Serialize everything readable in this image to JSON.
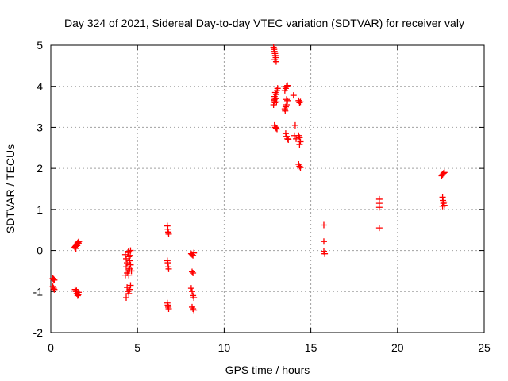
{
  "colors": {
    "series": "#ff0000",
    "grid": "#a0a0a0",
    "axis": "#000000",
    "background": "#ffffff"
  },
  "chart_data": {
    "type": "scatter",
    "title": "Day 324 of 2021, Sidereal Day-to-day VTEC variation (SDTVAR) for receiver valy",
    "xlabel": "GPS time / hours",
    "ylabel": "SDTVAR / TECUs",
    "xlim": [
      0,
      25
    ],
    "ylim": [
      -2,
      5
    ],
    "xticks": [
      0,
      5,
      10,
      15,
      20,
      25
    ],
    "yticks": [
      -2,
      -1,
      0,
      1,
      2,
      3,
      4,
      5
    ],
    "xtick_labels": [
      "0",
      "5",
      "10",
      "15",
      "20",
      "25"
    ],
    "ytick_labels": [
      "-2",
      "-1",
      "0",
      "1",
      "2",
      "3",
      "4",
      "5"
    ],
    "grid": true,
    "marker": "plus",
    "series": [
      {
        "name": "SDTVAR",
        "points": [
          [
            0.12,
            -0.68
          ],
          [
            0.16,
            -0.7
          ],
          [
            0.2,
            -0.72
          ],
          [
            0.12,
            -0.88
          ],
          [
            0.16,
            -0.92
          ],
          [
            0.2,
            -0.95
          ],
          [
            1.38,
            0.08
          ],
          [
            1.42,
            0.1
          ],
          [
            1.46,
            0.12
          ],
          [
            1.5,
            0.15
          ],
          [
            1.54,
            0.18
          ],
          [
            1.58,
            0.2
          ],
          [
            1.62,
            0.22
          ],
          [
            1.45,
            0.05
          ],
          [
            1.52,
            0.12
          ],
          [
            1.6,
            0.17
          ],
          [
            1.4,
            -0.95
          ],
          [
            1.45,
            -1.0
          ],
          [
            1.5,
            -1.05
          ],
          [
            1.55,
            -1.1
          ],
          [
            1.6,
            -1.02
          ],
          [
            1.48,
            -0.98
          ],
          [
            1.58,
            -1.08
          ],
          [
            4.3,
            -0.1
          ],
          [
            4.35,
            -0.2
          ],
          [
            4.4,
            -0.3
          ],
          [
            4.45,
            -0.05
          ],
          [
            4.5,
            -0.15
          ],
          [
            4.55,
            -0.25
          ],
          [
            4.6,
            0.0
          ],
          [
            4.35,
            -0.4
          ],
          [
            4.45,
            -0.5
          ],
          [
            4.55,
            -0.45
          ],
          [
            4.5,
            -0.6
          ],
          [
            4.4,
            -0.55
          ],
          [
            4.6,
            -0.35
          ],
          [
            4.65,
            -0.5
          ],
          [
            4.3,
            -0.6
          ],
          [
            4.48,
            -0.02
          ],
          [
            4.58,
            -0.12
          ],
          [
            4.4,
            -0.9
          ],
          [
            4.45,
            -1.0
          ],
          [
            4.5,
            -1.05
          ],
          [
            4.35,
            -1.15
          ],
          [
            4.55,
            -0.95
          ],
          [
            4.6,
            -0.85
          ],
          [
            6.72,
            0.6
          ],
          [
            6.75,
            0.52
          ],
          [
            6.78,
            0.45
          ],
          [
            6.8,
            0.4
          ],
          [
            6.72,
            -0.25
          ],
          [
            6.75,
            -0.3
          ],
          [
            6.78,
            -0.4
          ],
          [
            6.8,
            -0.45
          ],
          [
            6.72,
            -1.28
          ],
          [
            6.75,
            -1.33
          ],
          [
            6.78,
            -1.38
          ],
          [
            6.8,
            -1.42
          ],
          [
            8.1,
            -0.08
          ],
          [
            8.15,
            -0.1
          ],
          [
            8.2,
            -0.12
          ],
          [
            8.25,
            -0.06
          ],
          [
            8.15,
            -0.52
          ],
          [
            8.2,
            -0.55
          ],
          [
            8.1,
            -0.92
          ],
          [
            8.15,
            -1.0
          ],
          [
            8.2,
            -1.1
          ],
          [
            8.25,
            -1.15
          ],
          [
            8.15,
            -1.38
          ],
          [
            8.2,
            -1.42
          ],
          [
            8.25,
            -1.45
          ],
          [
            12.85,
            4.95
          ],
          [
            12.88,
            4.9
          ],
          [
            12.9,
            4.85
          ],
          [
            12.93,
            4.8
          ],
          [
            12.95,
            4.75
          ],
          [
            12.98,
            4.7
          ],
          [
            13.0,
            4.6
          ],
          [
            12.92,
            4.65
          ],
          [
            12.85,
            3.55
          ],
          [
            12.88,
            3.65
          ],
          [
            12.9,
            3.75
          ],
          [
            12.93,
            3.6
          ],
          [
            12.95,
            3.85
          ],
          [
            12.98,
            3.7
          ],
          [
            13.0,
            3.8
          ],
          [
            13.05,
            3.9
          ],
          [
            13.08,
            3.95
          ],
          [
            12.9,
            3.68
          ],
          [
            13.02,
            3.62
          ],
          [
            12.9,
            3.05
          ],
          [
            12.95,
            3.0
          ],
          [
            13.0,
            2.98
          ],
          [
            13.05,
            2.96
          ],
          [
            13.5,
            3.9
          ],
          [
            13.55,
            3.95
          ],
          [
            13.6,
            4.0
          ],
          [
            13.65,
            4.02
          ],
          [
            13.5,
            3.45
          ],
          [
            13.55,
            3.5
          ],
          [
            13.6,
            3.55
          ],
          [
            13.65,
            3.65
          ],
          [
            13.52,
            3.4
          ],
          [
            13.6,
            3.68
          ],
          [
            13.55,
            2.85
          ],
          [
            13.6,
            2.78
          ],
          [
            13.65,
            2.72
          ],
          [
            13.7,
            2.7
          ],
          [
            14.0,
            3.78
          ],
          [
            14.1,
            3.05
          ],
          [
            14.05,
            2.8
          ],
          [
            14.15,
            2.72
          ],
          [
            14.3,
            3.65
          ],
          [
            14.35,
            3.6
          ],
          [
            14.4,
            3.62
          ],
          [
            14.3,
            2.8
          ],
          [
            14.35,
            2.75
          ],
          [
            14.4,
            2.65
          ],
          [
            14.35,
            2.58
          ],
          [
            14.3,
            2.1
          ],
          [
            14.35,
            2.05
          ],
          [
            14.4,
            2.02
          ],
          [
            15.75,
            0.62
          ],
          [
            15.75,
            0.22
          ],
          [
            15.75,
            -0.02
          ],
          [
            15.8,
            -0.08
          ],
          [
            18.95,
            1.25
          ],
          [
            18.95,
            1.15
          ],
          [
            18.95,
            1.05
          ],
          [
            18.95,
            0.55
          ],
          [
            22.6,
            1.85
          ],
          [
            22.65,
            1.88
          ],
          [
            22.7,
            1.9
          ],
          [
            22.55,
            1.82
          ],
          [
            22.6,
            1.3
          ],
          [
            22.62,
            1.22
          ],
          [
            22.65,
            1.15
          ],
          [
            22.7,
            1.1
          ],
          [
            22.6,
            1.08
          ],
          [
            22.68,
            1.18
          ]
        ]
      }
    ]
  }
}
